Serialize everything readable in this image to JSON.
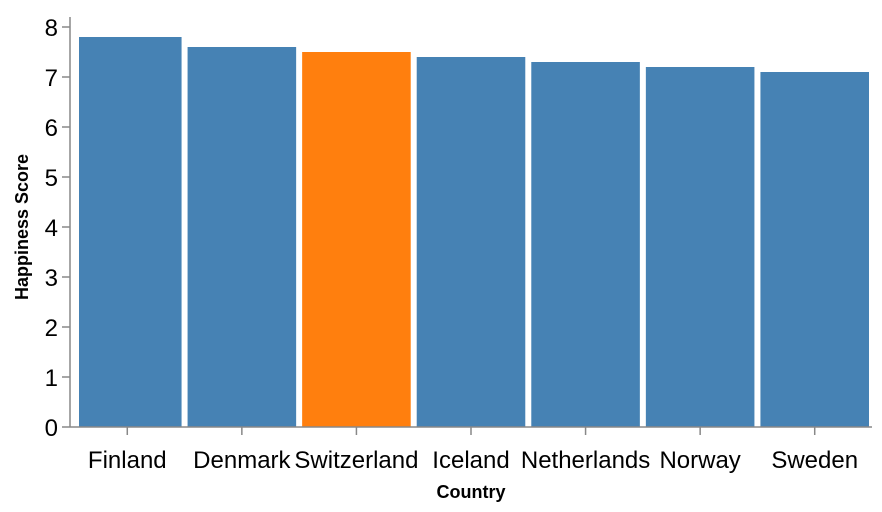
{
  "chart_data": {
    "type": "bar",
    "title": "",
    "xlabel": "Country",
    "ylabel": "Happiness Score",
    "categories": [
      "Finland",
      "Denmark",
      "Switzerland",
      "Iceland",
      "Netherlands",
      "Norway",
      "Sweden"
    ],
    "values": [
      7.8,
      7.6,
      7.5,
      7.4,
      7.3,
      7.2,
      7.1
    ],
    "highlight": "Switzerland",
    "ylim": [
      0,
      8
    ],
    "yticks": [
      0,
      1,
      2,
      3,
      4,
      5,
      6,
      7,
      8
    ],
    "grid": false,
    "colors": {
      "bar": "#4682b4",
      "highlight": "#ff7f0e",
      "axis": "#888888"
    }
  }
}
